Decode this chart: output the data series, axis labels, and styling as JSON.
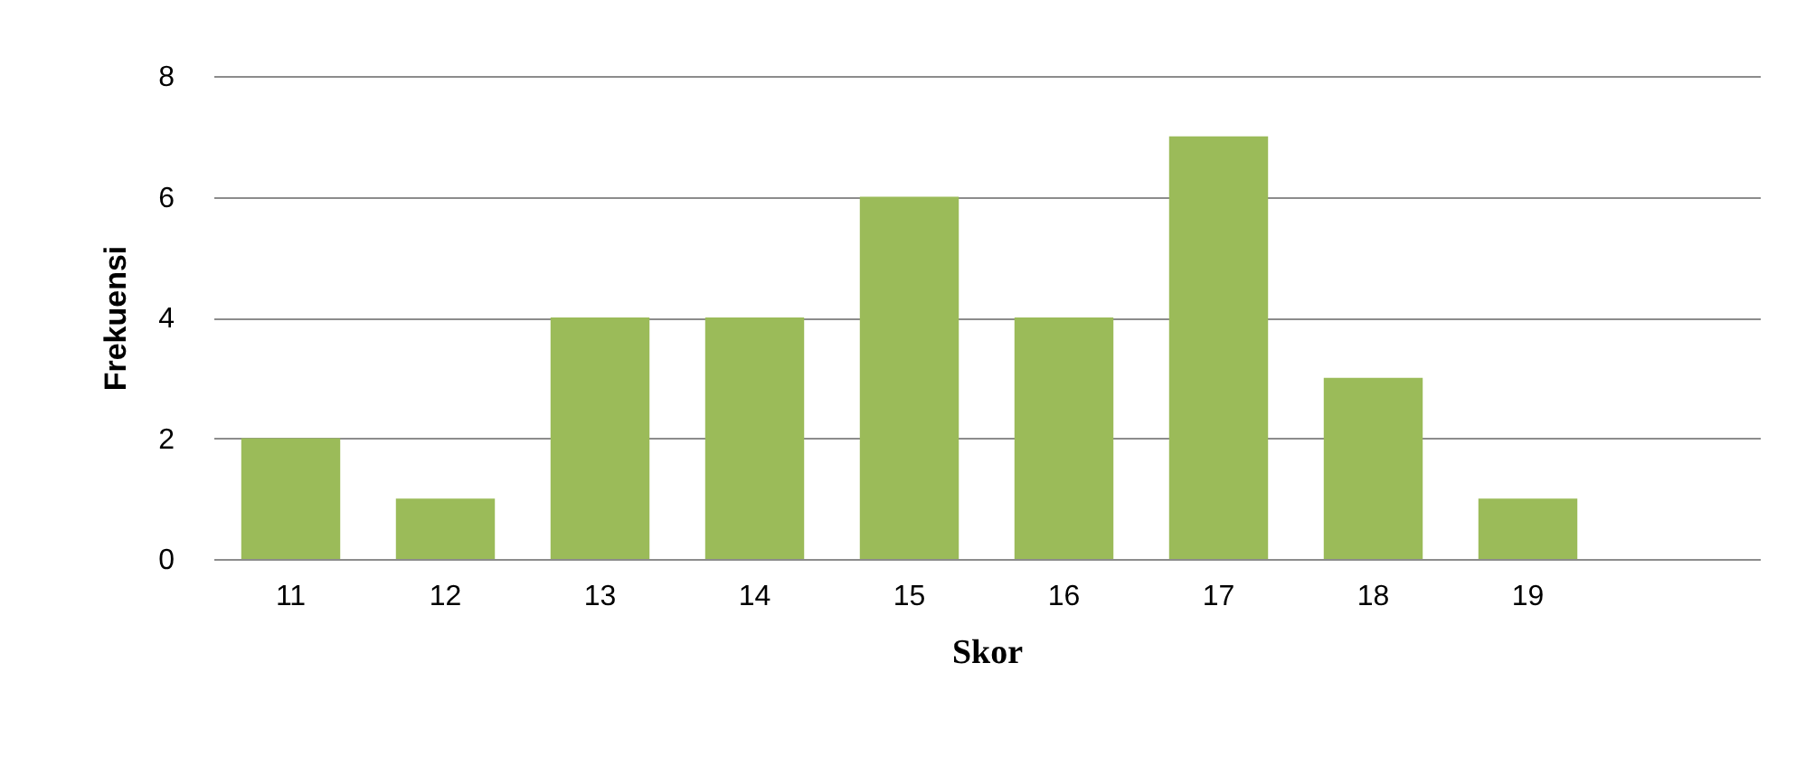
{
  "chart_data": {
    "type": "bar",
    "xlabel": "Skor",
    "ylabel": "Frekuensi",
    "categories": [
      "11",
      "12",
      "13",
      "14",
      "15",
      "16",
      "17",
      "18",
      "19",
      null
    ],
    "values": [
      2,
      1,
      4,
      4,
      6,
      4,
      7,
      3,
      1,
      null
    ],
    "color": "#9bbb59",
    "ylim": [
      0,
      8
    ],
    "yticks": [
      0,
      2,
      4,
      6,
      8
    ],
    "grid": "y"
  }
}
